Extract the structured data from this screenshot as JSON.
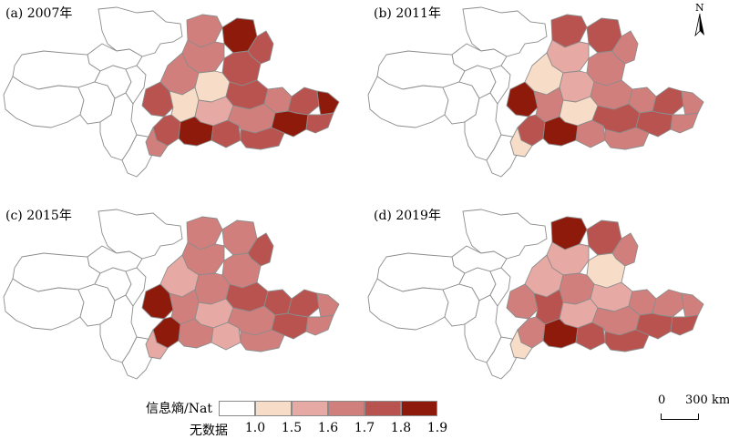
{
  "panels": [
    {
      "label": "(a) 2007年",
      "variant": 0
    },
    {
      "label": "(b) 2011年",
      "variant": 1
    },
    {
      "label": "(c) 2015年",
      "variant": 2
    },
    {
      "label": "(d) 2019年",
      "variant": 3
    }
  ],
  "north_arrow": {
    "letter": "N"
  },
  "legend": {
    "title": "信息熵/Nat",
    "no_data_label": "无数据",
    "ticks": [
      "1.0",
      "1.5",
      "1.6",
      "1.7",
      "1.8",
      "1.9"
    ],
    "classes": [
      {
        "range": "无数据",
        "color": "#ffffff"
      },
      {
        "range": "1.0-1.5",
        "color": "#f7ddc8"
      },
      {
        "range": "1.5-1.6",
        "color": "#e7a9a3"
      },
      {
        "range": "1.6-1.7",
        "color": "#d17f7c"
      },
      {
        "range": "1.7-1.8",
        "color": "#b85350"
      },
      {
        "range": "1.8-1.9",
        "color": "#8e1a0c"
      }
    ]
  },
  "scale_bar": {
    "zero": "0",
    "distance": "300 km"
  },
  "colors": {
    "border": "#8c8c8c",
    "nodata": "#ffffff"
  }
}
